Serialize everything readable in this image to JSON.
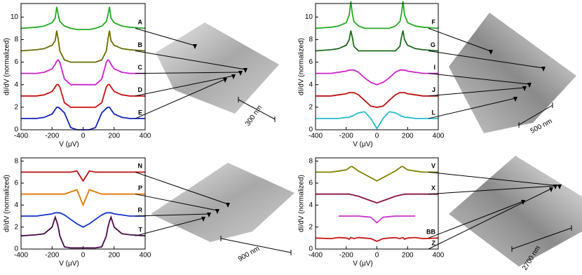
{
  "chart_data": [
    {
      "type": "line",
      "xlabel": "V (μV)",
      "ylabel": "dI/dV (normalized)",
      "annotation": "300 nm",
      "xlim": [
        -400,
        400
      ],
      "xticks": [
        -400,
        -200,
        0,
        200,
        400
      ],
      "ylim": [
        0,
        11.2
      ],
      "yticks": [
        0,
        2,
        4,
        6,
        8,
        10
      ],
      "x": [
        -400,
        -300,
        -250,
        -200,
        -180,
        -170,
        -160,
        -150,
        -120,
        -80,
        -40,
        0,
        40,
        80,
        120,
        150,
        160,
        170,
        180,
        200,
        250,
        300,
        400
      ],
      "series": [
        {
          "name": "A",
          "color": "#22aa22",
          "values": [
            9.0,
            9.1,
            9.2,
            9.5,
            9.9,
            10.9,
            10.2,
            9.6,
            9.2,
            9.0,
            8.9,
            8.9,
            8.9,
            9.0,
            9.2,
            9.6,
            10.2,
            10.9,
            9.9,
            9.5,
            9.2,
            9.1,
            9.0
          ]
        },
        {
          "name": "B",
          "color": "#6b6b00",
          "values": [
            7.0,
            7.1,
            7.2,
            7.5,
            7.9,
            8.8,
            8.0,
            7.0,
            6.2,
            6.0,
            6.0,
            6.0,
            6.0,
            6.0,
            6.2,
            7.0,
            8.0,
            8.8,
            7.9,
            7.5,
            7.2,
            7.1,
            7.0
          ]
        },
        {
          "name": "C",
          "color": "#cc22cc",
          "values": [
            5.0,
            5.0,
            5.1,
            5.4,
            5.8,
            6.1,
            6.2,
            6.0,
            4.5,
            4.0,
            4.0,
            4.0,
            4.0,
            4.0,
            4.5,
            6.0,
            6.2,
            6.1,
            5.8,
            5.4,
            5.1,
            5.0,
            5.0
          ]
        },
        {
          "name": "D",
          "color": "#cc1111",
          "values": [
            3.0,
            3.0,
            3.1,
            3.4,
            3.8,
            4.0,
            4.0,
            3.8,
            2.4,
            2.0,
            2.0,
            2.0,
            2.0,
            2.0,
            2.4,
            3.8,
            4.0,
            4.0,
            3.8,
            3.4,
            3.1,
            3.0,
            3.0
          ]
        },
        {
          "name": "E",
          "color": "#1122bb",
          "values": [
            1.0,
            1.0,
            1.1,
            1.4,
            1.8,
            2.0,
            2.0,
            1.9,
            1.5,
            0.2,
            0.0,
            0.0,
            0.0,
            0.2,
            1.5,
            1.9,
            2.0,
            2.0,
            1.8,
            1.4,
            1.1,
            1.0,
            1.0
          ]
        }
      ]
    },
    {
      "type": "line",
      "xlabel": "V (μV)",
      "ylabel": "dI/dV (normalized)",
      "annotation": "500 nm",
      "xlim": [
        -400,
        400
      ],
      "xticks": [
        -400,
        -200,
        0,
        200,
        400
      ],
      "ylim": [
        0,
        11.2
      ],
      "yticks": [
        0,
        2,
        4,
        6,
        8,
        10
      ],
      "x": [
        -400,
        -300,
        -250,
        -200,
        -180,
        -170,
        -160,
        -150,
        -120,
        -80,
        -40,
        0,
        40,
        80,
        120,
        150,
        160,
        170,
        180,
        200,
        250,
        300,
        400
      ],
      "series": [
        {
          "name": "F",
          "color": "#22aa22",
          "values": [
            9.0,
            9.1,
            9.2,
            9.5,
            10.2,
            11.4,
            10.3,
            9.6,
            9.2,
            9.0,
            9.0,
            9.0,
            9.0,
            9.0,
            9.2,
            9.6,
            10.3,
            11.4,
            10.2,
            9.5,
            9.2,
            9.1,
            9.0
          ]
        },
        {
          "name": "G",
          "color": "#1a6a1a",
          "values": [
            7.0,
            7.1,
            7.2,
            7.5,
            8.0,
            8.8,
            8.2,
            7.4,
            7.0,
            7.0,
            7.0,
            7.0,
            7.0,
            7.0,
            7.0,
            7.4,
            8.2,
            8.8,
            8.0,
            7.5,
            7.2,
            7.1,
            7.0
          ]
        },
        {
          "name": "I",
          "color": "#cc22cc",
          "values": [
            5.0,
            5.0,
            5.1,
            5.2,
            5.3,
            5.3,
            5.3,
            5.3,
            5.1,
            4.6,
            4.2,
            4.0,
            4.2,
            4.6,
            5.1,
            5.3,
            5.3,
            5.3,
            5.3,
            5.2,
            5.1,
            5.0,
            5.0
          ]
        },
        {
          "name": "J",
          "color": "#bb1111",
          "values": [
            3.0,
            3.0,
            3.1,
            3.2,
            3.3,
            3.3,
            3.3,
            3.3,
            3.1,
            2.6,
            2.1,
            2.0,
            2.1,
            2.6,
            3.1,
            3.3,
            3.3,
            3.3,
            3.3,
            3.2,
            3.1,
            3.0,
            3.0
          ]
        },
        {
          "name": "L",
          "color": "#22bbcc",
          "values": [
            1.0,
            1.0,
            1.0,
            1.1,
            1.1,
            1.2,
            1.2,
            1.3,
            1.5,
            1.6,
            1.0,
            0.1,
            1.0,
            1.6,
            1.5,
            1.3,
            1.2,
            1.2,
            1.1,
            1.1,
            1.0,
            1.0,
            1.0
          ]
        }
      ]
    },
    {
      "type": "line",
      "xlabel": "V (μV)",
      "ylabel": "dI/dV (normalized)",
      "annotation": "900 nm",
      "xlim": [
        -400,
        400
      ],
      "xticks": [
        -400,
        -200,
        0,
        200,
        400
      ],
      "ylim": [
        0,
        8.3
      ],
      "yticks": [
        0,
        2,
        4,
        6,
        8
      ],
      "x": [
        -400,
        -300,
        -250,
        -200,
        -180,
        -170,
        -160,
        -150,
        -120,
        -80,
        -40,
        0,
        40,
        80,
        120,
        150,
        160,
        170,
        180,
        200,
        250,
        300,
        400
      ],
      "series": [
        {
          "name": "N",
          "color": "#bb1111",
          "values": [
            7.0,
            7.0,
            7.0,
            7.0,
            7.0,
            7.0,
            7.0,
            7.0,
            7.0,
            7.0,
            7.1,
            6.2,
            7.1,
            7.0,
            7.0,
            7.0,
            7.0,
            7.0,
            7.0,
            7.0,
            7.0,
            7.0,
            7.0
          ]
        },
        {
          "name": "P",
          "color": "#e07a00",
          "values": [
            5.0,
            5.0,
            5.0,
            5.0,
            5.0,
            5.0,
            5.0,
            5.0,
            5.0,
            5.2,
            5.4,
            4.0,
            5.4,
            5.2,
            5.0,
            5.0,
            5.0,
            5.0,
            5.0,
            5.0,
            5.0,
            5.0,
            5.0
          ]
        },
        {
          "name": "R",
          "color": "#1133cc",
          "values": [
            3.0,
            3.0,
            3.1,
            3.2,
            3.3,
            3.3,
            3.3,
            3.3,
            3.1,
            2.7,
            2.3,
            2.0,
            2.3,
            2.7,
            3.1,
            3.3,
            3.3,
            3.3,
            3.3,
            3.2,
            3.1,
            3.0,
            3.0
          ]
        },
        {
          "name": "T",
          "color": "#4a0a4a",
          "values": [
            1.2,
            1.3,
            1.4,
            2.0,
            2.9,
            2.5,
            2.0,
            1.2,
            0.2,
            0.1,
            0.1,
            0.1,
            0.1,
            0.1,
            0.2,
            1.2,
            2.0,
            2.5,
            2.9,
            2.0,
            1.4,
            1.3,
            1.2
          ]
        }
      ]
    },
    {
      "type": "line",
      "xlabel": "V (μV)",
      "ylabel": "dI/dV (normalized)",
      "annotation": "2700 nm",
      "xlim": [
        -400,
        400
      ],
      "xticks": [
        -400,
        -200,
        0,
        200,
        400
      ],
      "ylim": [
        0,
        8.3
      ],
      "yticks": [
        0,
        2,
        4,
        6,
        8
      ],
      "x": [
        -400,
        -300,
        -250,
        -200,
        -180,
        -170,
        -160,
        -150,
        -120,
        -80,
        -40,
        0,
        40,
        80,
        120,
        150,
        160,
        170,
        180,
        200,
        250,
        300,
        400
      ],
      "series": [
        {
          "name": "V",
          "color": "#808000",
          "values": [
            7.0,
            7.0,
            7.1,
            7.2,
            7.4,
            7.5,
            7.5,
            7.4,
            7.1,
            6.8,
            6.5,
            6.2,
            6.5,
            6.8,
            7.1,
            7.4,
            7.5,
            7.5,
            7.4,
            7.2,
            7.1,
            7.0,
            7.0
          ]
        },
        {
          "name": "X",
          "color": "#8b1040",
          "values": [
            5.0,
            5.0,
            5.0,
            5.0,
            5.0,
            4.95,
            4.95,
            4.9,
            4.8,
            4.6,
            4.4,
            4.2,
            4.4,
            4.6,
            4.8,
            4.9,
            4.95,
            4.95,
            5.0,
            5.0,
            5.0,
            5.0,
            5.0
          ]
        },
        {
          "name": "Z",
          "color": "#cc33cc",
          "values": [
            null,
            null,
            3.0,
            3.0,
            3.0,
            3.0,
            3.0,
            3.0,
            3.0,
            2.95,
            2.9,
            2.4,
            2.9,
            2.95,
            3.0,
            3.0,
            3.0,
            3.0,
            3.0,
            3.0,
            3.0,
            null,
            null
          ]
        },
        {
          "name": "BB",
          "color": "#cc1111",
          "values": [
            1.0,
            0.95,
            1.05,
            1.0,
            0.9,
            1.05,
            1.0,
            0.95,
            1.05,
            1.0,
            0.95,
            0.7,
            0.95,
            1.0,
            1.05,
            0.95,
            1.0,
            1.05,
            0.9,
            1.0,
            1.05,
            0.95,
            1.0
          ]
        }
      ]
    }
  ]
}
